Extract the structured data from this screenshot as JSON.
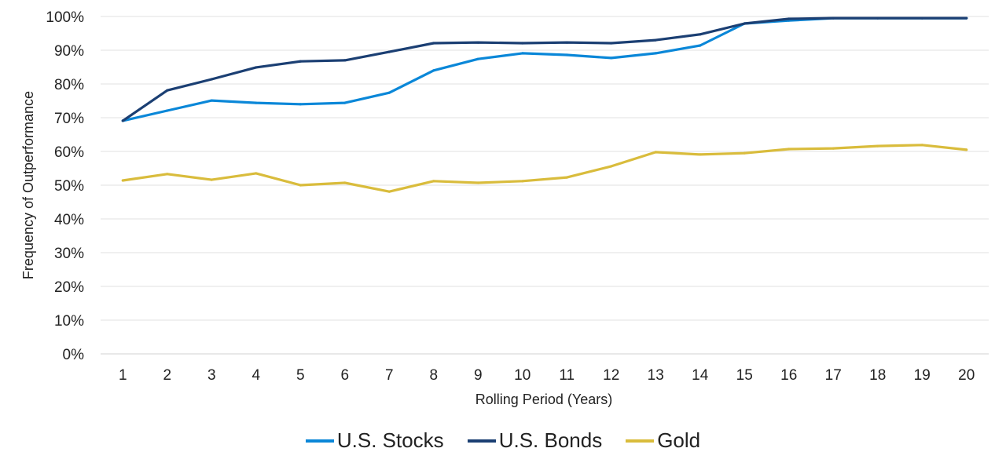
{
  "chart_data": {
    "type": "line",
    "title": "",
    "xlabel": "Rolling Period (Years)",
    "ylabel": "Frequency of Outperformance",
    "ylim": [
      0,
      100
    ],
    "y_ticks": [
      "0%",
      "10%",
      "20%",
      "30%",
      "40%",
      "50%",
      "60%",
      "70%",
      "80%",
      "90%",
      "100%"
    ],
    "grid": "horizontal",
    "legend": "bottom",
    "categories": [
      "1",
      "2",
      "3",
      "4",
      "5",
      "6",
      "7",
      "8",
      "9",
      "10",
      "11",
      "12",
      "13",
      "14",
      "15",
      "16",
      "17",
      "18",
      "19",
      "20"
    ],
    "series": [
      {
        "name": "U.S. Stocks",
        "color": "#0a87d8",
        "values": [
          69.1,
          72.1,
          75.1,
          74.4,
          74.0,
          74.4,
          77.4,
          84.0,
          87.4,
          89.1,
          88.6,
          87.7,
          89.1,
          91.4,
          97.9,
          98.8,
          99.5,
          99.5,
          99.5,
          99.5
        ]
      },
      {
        "name": "U.S. Bonds",
        "color": "#1b3f73",
        "values": [
          69.1,
          78.1,
          81.4,
          84.9,
          86.7,
          87.0,
          89.5,
          92.1,
          92.3,
          92.1,
          92.3,
          92.1,
          93.0,
          94.7,
          97.9,
          99.3,
          99.5,
          99.5,
          99.5,
          99.5
        ]
      },
      {
        "name": "Gold",
        "color": "#d9bc3c",
        "values": [
          51.4,
          53.3,
          51.6,
          53.5,
          50.0,
          50.7,
          48.1,
          51.2,
          50.7,
          51.2,
          52.3,
          55.6,
          59.8,
          59.1,
          59.5,
          60.7,
          60.9,
          61.6,
          61.9,
          60.5
        ]
      }
    ]
  }
}
